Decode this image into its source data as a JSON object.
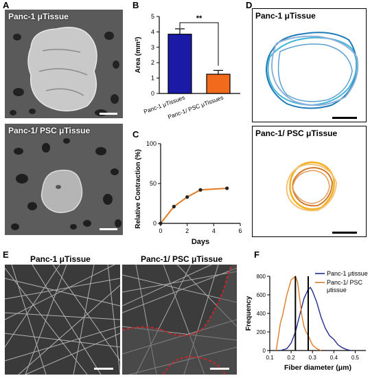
{
  "panels": {
    "A": {
      "letter": "A",
      "top_title": "Panc-1 μTissue",
      "bottom_title": "Panc-1/ PSC μTissue"
    },
    "B": {
      "letter": "B"
    },
    "C": {
      "letter": "C"
    },
    "D": {
      "letter": "D",
      "top_title": "Panc-1 μTissue",
      "bottom_title": "Panc-1/ PSC μTissue"
    },
    "E": {
      "letter": "E",
      "left_title": "Panc-1 μTissue",
      "right_title": "Panc-1/ PSC μTissue"
    },
    "F": {
      "letter": "F"
    }
  },
  "colors": {
    "blue": "#1a1aa6",
    "orange": "#f26a1b",
    "orange_line": "#e07b24",
    "navy": "#1f2b8f",
    "red_dash": "#c0282d"
  },
  "chart_data": [
    {
      "id": "B",
      "type": "bar",
      "categories": [
        "Panc-1 μTissues",
        "Panc-1/ PSC μTissues"
      ],
      "values": [
        3.85,
        1.25
      ],
      "errors": [
        0.35,
        0.25
      ],
      "ylabel": "Area (mm²)",
      "ylim": [
        0,
        5
      ],
      "yticks": [
        "0",
        "1",
        "2",
        "3",
        "4",
        "5"
      ],
      "significance": "**"
    },
    {
      "id": "C",
      "type": "line",
      "x": [
        0,
        1,
        2,
        3,
        5
      ],
      "y": [
        0,
        21,
        33,
        42,
        44
      ],
      "xlabel": "Days",
      "ylabel": "Relative Contraction (%)",
      "xlim": [
        0,
        6
      ],
      "ylim": [
        0,
        100
      ],
      "xticks": [
        "0",
        "2",
        "4",
        "6"
      ],
      "yticks": [
        "0",
        "50",
        "100"
      ]
    },
    {
      "id": "F",
      "type": "line",
      "xlabel": "Fiber diameter (μm)",
      "ylabel": "Frequency",
      "xlim": [
        0.1,
        0.55
      ],
      "ylim": [
        0,
        800
      ],
      "xticks": [
        "0.1",
        "0.2",
        "0.3",
        "0.4",
        "0.5"
      ],
      "yticks": [
        "0",
        "200",
        "400",
        "600",
        "800"
      ],
      "series": [
        {
          "name": "Panc-1 μtissue",
          "x": [
            0.15,
            0.18,
            0.2,
            0.22,
            0.24,
            0.26,
            0.28,
            0.29,
            0.3,
            0.32,
            0.34,
            0.36,
            0.38,
            0.4,
            0.42,
            0.44,
            0.46,
            0.48
          ],
          "y": [
            0,
            20,
            80,
            200,
            380,
            560,
            660,
            680,
            640,
            520,
            360,
            240,
            160,
            120,
            60,
            30,
            10,
            0
          ]
        },
        {
          "name": "Panc-1/ PSC μtissue",
          "x": [
            0.13,
            0.15,
            0.16,
            0.18,
            0.2,
            0.21,
            0.22,
            0.23,
            0.24,
            0.25,
            0.26,
            0.27,
            0.28,
            0.3,
            0.32,
            0.34
          ],
          "y": [
            0,
            300,
            380,
            600,
            760,
            780,
            800,
            740,
            560,
            380,
            260,
            200,
            160,
            60,
            20,
            0
          ]
        }
      ],
      "mean_lines": [
        0.22,
        0.28
      ]
    }
  ]
}
